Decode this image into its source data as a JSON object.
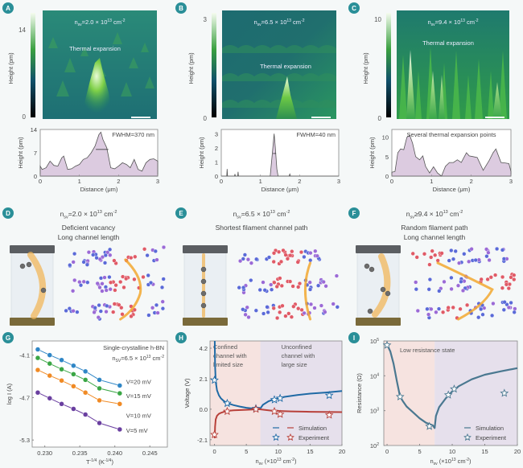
{
  "panels": {
    "A": {
      "label": "A",
      "density": "n",
      "density_sub": "sv",
      "density_value": "=2.0 × 10",
      "density_exp": "13",
      "density_unit": " cm",
      "density_unit_exp": "-2",
      "annotation": "Thermal expansion",
      "colorbar_max": "14",
      "colorbar_min": "0",
      "colorbar_label": "Height (pm)"
    },
    "B": {
      "label": "B",
      "density": "n",
      "density_sub": "sv",
      "density_value": "=6.5 × 10",
      "density_exp": "13",
      "density_unit": " cm",
      "density_unit_exp": "-2",
      "annotation": "Thermal expansion",
      "colorbar_max": "3",
      "colorbar_min": "0",
      "colorbar_label": "Height (pm)"
    },
    "C": {
      "label": "C",
      "density": "n",
      "density_sub": "sv",
      "density_value": "=9.4 × 10",
      "density_exp": "13",
      "density_unit": " cm",
      "density_unit_exp": "-2",
      "annotation": "Thermal expansion",
      "colorbar_max": "10",
      "colorbar_min": "0",
      "colorbar_label": "Height (pm)"
    },
    "D": {
      "label": "D",
      "density_sub": "sv",
      "density_value": "=2.0 × 10",
      "density_exp": "13",
      "density_unit": " cm",
      "density_unit_exp": "-2",
      "line1": "Deficient vacancy",
      "line2": "Long channel length"
    },
    "E": {
      "label": "E",
      "density_sub": "sv",
      "density_value": "=6.5 × 10",
      "density_exp": "13",
      "density_unit": " cm",
      "density_unit_exp": "-2",
      "line1": "Shortest filament channel path",
      "line2": ""
    },
    "F": {
      "label": "F",
      "density_sub": "sv",
      "density_value": "≥9.4 × 10",
      "density_exp": "13",
      "density_unit": " cm",
      "density_unit_exp": "-2",
      "line1": "Random filament path",
      "line2": "Long channel length"
    },
    "G": {
      "label": "G"
    },
    "H": {
      "label": "H"
    },
    "I": {
      "label": "I"
    }
  },
  "colors": {
    "badge": "#2a8f98",
    "profile_fill": "#dccbe0",
    "profile_line": "#555555",
    "g_series": [
      "#2f86c6",
      "#3aa645",
      "#f08a24",
      "#6a3fa0"
    ],
    "h_blue": "#1f6aa5",
    "h_red": "#b8403a",
    "i_line": "#4a7890",
    "region_left": "#f6e3e0",
    "region_right": "#e6e0ec"
  },
  "chart_data": [
    {
      "id": "A-profile",
      "type": "area",
      "title": "",
      "annotation": "FWHM=370 nm",
      "xlabel": "Distance (μm)",
      "ylabel": "Height (pm)",
      "xlim": [
        0,
        3
      ],
      "ylim": [
        0,
        14
      ],
      "xticks": [
        "0",
        "1",
        "2",
        "3"
      ],
      "yticks": [
        "0",
        "7",
        "14"
      ],
      "x": [
        0,
        0.05,
        0.15,
        0.25,
        0.35,
        0.45,
        0.55,
        0.6,
        0.7,
        0.8,
        0.9,
        1.0,
        1.1,
        1.2,
        1.3,
        1.4,
        1.5,
        1.55,
        1.6,
        1.7,
        1.8,
        1.9,
        2.0,
        2.1,
        2.2,
        2.3,
        2.4,
        2.5,
        2.6,
        2.7,
        2.8,
        2.9,
        3.0
      ],
      "y": [
        3.0,
        2.0,
        2.5,
        4.5,
        3.2,
        3.0,
        5.5,
        6.0,
        2.0,
        2.2,
        3.0,
        3.5,
        5.0,
        5.5,
        7.0,
        9.0,
        12.5,
        13.2,
        11.0,
        8.5,
        2.5,
        2.2,
        3.0,
        4.0,
        3.5,
        2.5,
        5.0,
        2.0,
        1.5,
        4.0,
        5.0,
        5.2,
        4.5
      ]
    },
    {
      "id": "B-profile",
      "type": "area",
      "title": "",
      "annotation": "FWHM=40 nm",
      "xlabel": "Distance (μm)",
      "ylabel": "Height (pm)",
      "xlim": [
        0,
        3
      ],
      "ylim": [
        0,
        3.3
      ],
      "xticks": [
        "0",
        "1",
        "2",
        "3"
      ],
      "yticks": [
        "0",
        "1",
        "2",
        "3"
      ],
      "x": [
        0,
        0.14,
        0.15,
        0.16,
        0.34,
        0.35,
        0.36,
        0.42,
        0.43,
        0.44,
        1.25,
        1.3,
        1.35,
        1.38,
        1.42,
        1.45,
        1.73,
        1.75,
        1.77,
        3.0
      ],
      "y": [
        0,
        0,
        0.5,
        0,
        0,
        0.15,
        0,
        0,
        0.3,
        0,
        0,
        1.5,
        3.0,
        2.0,
        0.5,
        0,
        0,
        0.15,
        0,
        0
      ]
    },
    {
      "id": "C-profile",
      "type": "area",
      "title": "",
      "annotation": "Several thermal expansion points",
      "xlabel": "Distance (μm)",
      "ylabel": "Height (pm)",
      "xlim": [
        0,
        3
      ],
      "ylim": [
        0,
        12
      ],
      "xticks": [
        "0",
        "1",
        "2",
        "3"
      ],
      "yticks": [
        "0",
        "5",
        "10"
      ],
      "x": [
        0,
        0.08,
        0.15,
        0.22,
        0.3,
        0.38,
        0.45,
        0.52,
        0.6,
        0.7,
        0.78,
        0.85,
        0.95,
        1.05,
        1.15,
        1.25,
        1.35,
        1.45,
        1.55,
        1.65,
        1.75,
        1.88,
        1.95,
        2.05,
        2.15,
        2.3,
        2.45,
        2.55,
        2.62,
        2.75,
        2.85,
        2.95,
        3.0
      ],
      "y": [
        1.0,
        1.2,
        6.0,
        7.0,
        6.8,
        10.0,
        10.5,
        8.5,
        5.0,
        4.2,
        5.2,
        2.5,
        0.8,
        2.4,
        0.8,
        0.0,
        2.5,
        3.5,
        3.5,
        4.2,
        3.5,
        6.0,
        5.2,
        5.0,
        4.8,
        1.5,
        4.0,
        6.0,
        7.0,
        3.5,
        3.4,
        3.2,
        1.2
      ]
    },
    {
      "id": "G",
      "type": "line",
      "title": "Single-crystalline h-BN",
      "subtitle_main": "n",
      "subtitle_sub": "SV",
      "subtitle_rest": "=6.5 × 10",
      "subtitle_exp": "13",
      "subtitle_unit": " cm",
      "subtitle_unit_exp": "-2",
      "xlabel": "T",
      "xlabel_exp": "-1/4",
      "xlabel_unit": " (K",
      "xlabel_unit_exp": "-1/4",
      "xlabel_close": ")",
      "ylabel": "log I (A)",
      "xlim": [
        0.2282,
        0.2475
      ],
      "ylim": [
        -5.4,
        -3.9
      ],
      "xticks": [
        "0.230",
        "0.235",
        "0.240",
        "0.245"
      ],
      "xtick_values": [
        0.23,
        0.235,
        0.24,
        0.245
      ],
      "yticks": [
        "-4.1",
        "-4.7",
        "-5.3"
      ],
      "ytick_values": [
        -4.1,
        -4.7,
        -5.3
      ],
      "x": [
        0.229,
        0.2307,
        0.2324,
        0.2341,
        0.2358,
        0.2378,
        0.2407
      ],
      "series": [
        {
          "name": "V=20 mV",
          "values": [
            -4.02,
            -4.1,
            -4.17,
            -4.25,
            -4.33,
            -4.45,
            -4.53
          ]
        },
        {
          "name": "V=15 mV",
          "values": [
            -4.14,
            -4.22,
            -4.3,
            -4.37,
            -4.45,
            -4.57,
            -4.64
          ]
        },
        {
          "name": "V=10 mV",
          "values": [
            -4.31,
            -4.39,
            -4.46,
            -4.54,
            -4.63,
            -4.74,
            -4.79
          ]
        },
        {
          "name": "V=5 mV",
          "values": [
            -4.63,
            -4.71,
            -4.79,
            -4.86,
            -4.94,
            -5.06,
            -5.15
          ]
        }
      ]
    },
    {
      "id": "H",
      "type": "line",
      "xlabel": "n",
      "xlabel_sub": "sv",
      "xlabel_rest": " (×10",
      "xlabel_exp": "13",
      "xlabel_unit": " cm",
      "xlabel_unit_exp": "-2",
      "xlabel_close": ")",
      "ylabel": "Voltage (V)",
      "xlim": [
        -0.7,
        20
      ],
      "ylim": [
        -2.5,
        4.7
      ],
      "xticks": [
        "0",
        "5",
        "10",
        "15",
        "20"
      ],
      "xtick_values": [
        0,
        5,
        10,
        15,
        20
      ],
      "yticks": [
        "4.2",
        "2.1",
        "0.0",
        "-2.1"
      ],
      "ytick_values": [
        4.2,
        2.1,
        0.0,
        -2.1
      ],
      "regions": [
        {
          "label_lines": [
            "Confined",
            "channel with",
            "limited size"
          ],
          "from": -0.7,
          "to": 7.2
        },
        {
          "label_lines": [
            "Unconfined",
            "channel with",
            "large size"
          ],
          "from": 7.2,
          "to": 20
        }
      ],
      "legend": {
        "simulation": "Simulation",
        "experiment": "Experiment"
      },
      "series": [
        {
          "name": "Simulation (positive)",
          "x": [
            0.05,
            0.1,
            0.2,
            0.4,
            0.7,
            1.0,
            1.5,
            2,
            3,
            4,
            5,
            6,
            6.8,
            7.2,
            7.6,
            8.5,
            9.5,
            11,
            13,
            15,
            17.5,
            20
          ],
          "values": [
            4.7,
            3.0,
            1.9,
            1.3,
            0.95,
            0.75,
            0.55,
            0.42,
            0.28,
            0.18,
            0.1,
            0.05,
            0.02,
            0.05,
            0.3,
            0.55,
            0.7,
            0.85,
            0.98,
            1.07,
            1.15,
            1.25
          ]
        },
        {
          "name": "Simulation (negative)",
          "x": [
            0.05,
            0.1,
            0.2,
            0.4,
            0.7,
            1.0,
            1.5,
            2,
            3,
            5,
            7,
            9,
            12,
            15,
            20
          ],
          "values": [
            -2.0,
            -1.2,
            -0.7,
            -0.45,
            -0.32,
            -0.25,
            -0.18,
            -0.12,
            -0.08,
            -0.04,
            0.0,
            -0.1,
            -0.15,
            -0.18,
            -0.2
          ]
        },
        {
          "name": "Experiment (positive)",
          "x": [
            0,
            2,
            6.5,
            9.4,
            10.3,
            18
          ],
          "values": [
            2.0,
            0.4,
            0.05,
            0.65,
            0.75,
            0.95
          ]
        },
        {
          "name": "Experiment (negative)",
          "x": [
            0,
            2,
            6.5,
            9.4,
            10.3,
            18
          ],
          "values": [
            -1.75,
            -0.15,
            0.0,
            -0.15,
            -0.35,
            -0.4
          ]
        }
      ]
    },
    {
      "id": "I",
      "type": "line",
      "xlabel": "n",
      "xlabel_sub": "sv",
      "xlabel_rest": " (×10",
      "xlabel_exp": "13",
      "xlabel_unit": " cm",
      "xlabel_unit_exp": "-2",
      "xlabel_close": ")",
      "ylabel": "Resistance (Ω)",
      "yscale": "log",
      "xlim": [
        -0.5,
        20
      ],
      "ylim_exp": [
        2,
        5
      ],
      "xticks": [
        "0",
        "5",
        "10",
        "15",
        "20"
      ],
      "xtick_values": [
        0,
        5,
        10,
        15,
        20
      ],
      "yticks": [
        "10",
        "10",
        "10",
        "10"
      ],
      "ytick_exps": [
        "2",
        "3",
        "4",
        "5"
      ],
      "ytick_values_exp": [
        2,
        3,
        4,
        5
      ],
      "regions": [
        {
          "label": "Low resistance state",
          "from": -0.5,
          "to": 7.3
        },
        {
          "from": 7.3,
          "to": 20
        }
      ],
      "legend": {
        "simulation": "Simulation",
        "experiment": "Experiment"
      },
      "series": [
        {
          "name": "Simulation",
          "x": [
            0,
            0.5,
            1.0,
            1.5,
            2,
            2.5,
            3,
            4,
            5,
            6,
            7,
            7.3,
            7.5,
            8,
            9,
            10,
            11,
            13,
            15,
            17.5,
            20
          ],
          "log_values": [
            4.9,
            4.7,
            4.35,
            3.85,
            3.4,
            3.25,
            3.12,
            2.95,
            2.78,
            2.65,
            2.58,
            2.5,
            2.85,
            3.1,
            3.35,
            3.55,
            3.7,
            3.9,
            4.03,
            4.13,
            4.22
          ]
        },
        {
          "name": "Experiment",
          "x": [
            0,
            2,
            6.5,
            9.4,
            10.3,
            18
          ],
          "log_values": [
            4.88,
            3.4,
            2.55,
            3.45,
            3.62,
            3.5
          ]
        }
      ]
    }
  ]
}
